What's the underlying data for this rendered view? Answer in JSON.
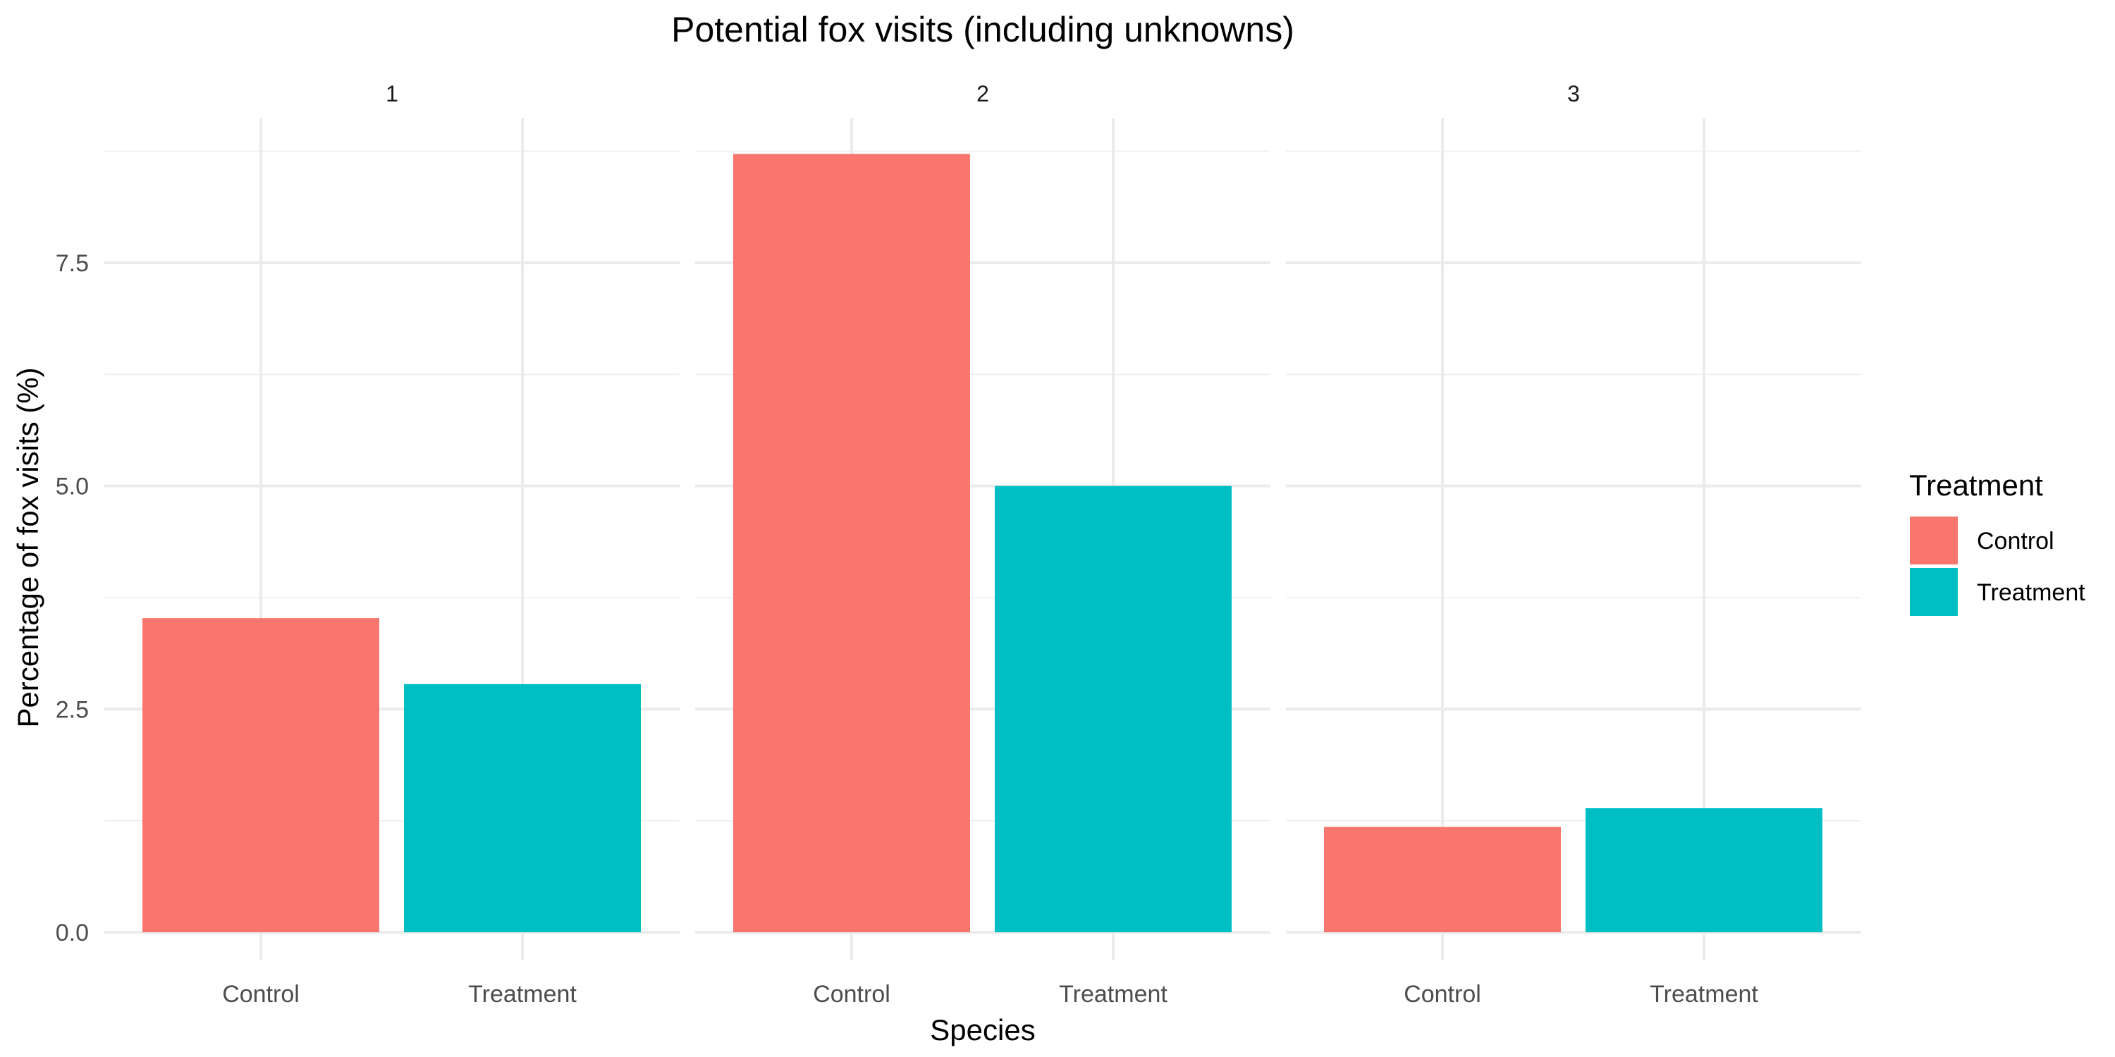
{
  "chart_data": {
    "type": "bar",
    "title": "Potential fox visits (including unknowns)",
    "xlabel": "Species",
    "ylabel": "Percentage of fox visits (%)",
    "ylim": [
      0,
      8.75
    ],
    "yticks": [
      "0.0",
      "2.5",
      "5.0",
      "7.5"
    ],
    "ytick_values": [
      0,
      2.5,
      5,
      7.5
    ],
    "grid": true,
    "legend": {
      "title": "Treatment",
      "position": "right",
      "entries": [
        "Control",
        "Treatment"
      ]
    },
    "colors": {
      "Control": "#F8766D",
      "Treatment": "#00BFC4"
    },
    "categories": [
      "Control",
      "Treatment"
    ],
    "facets": [
      {
        "label": "1",
        "series": [
          {
            "category": "Control",
            "value": 3.52
          },
          {
            "category": "Treatment",
            "value": 2.78
          }
        ]
      },
      {
        "label": "2",
        "series": [
          {
            "category": "Control",
            "value": 8.72
          },
          {
            "category": "Treatment",
            "value": 5.0
          }
        ]
      },
      {
        "label": "3",
        "series": [
          {
            "category": "Control",
            "value": 1.18
          },
          {
            "category": "Treatment",
            "value": 1.39
          }
        ]
      }
    ]
  }
}
